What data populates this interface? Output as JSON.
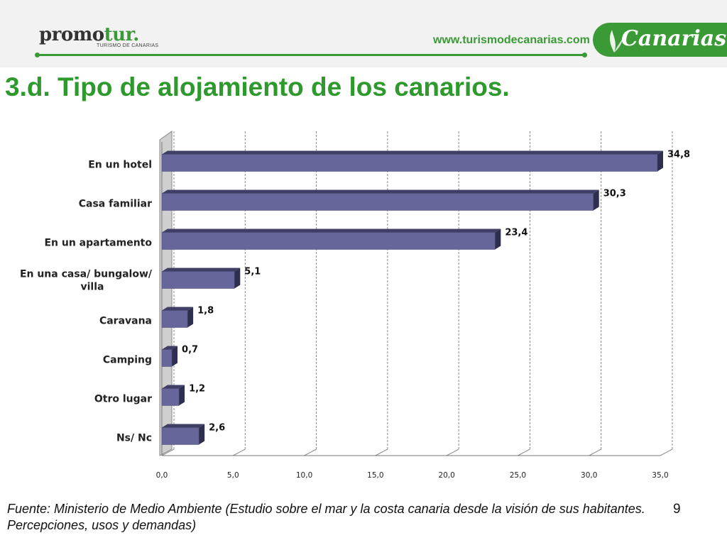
{
  "header": {
    "logo": "promotur.",
    "logo_subtitle": "TURISMO DE CANARIAS",
    "website": "www.turismodecanarias.com",
    "brand": "Canarias",
    "accent_color": "#3a9a35"
  },
  "title": "3.d. Tipo de alojamiento de los canarios.",
  "chart_data": {
    "type": "bar",
    "orientation": "horizontal",
    "categories": [
      "En un hotel",
      "Casa familiar",
      "En un apartamento",
      "En una casa/ bungalow/ villa",
      "Caravana",
      "Camping",
      "Otro lugar",
      "Ns/ Nc"
    ],
    "values": [
      34.8,
      30.3,
      23.4,
      5.1,
      1.8,
      0.7,
      1.2,
      2.6
    ],
    "data_labels": [
      "34,8",
      "30,3",
      "23,4",
      "5,1",
      "1,8",
      "0,7",
      "1,2",
      "2,6"
    ],
    "xlim": [
      0,
      35
    ],
    "x_ticks": [
      "0,0",
      "5,0",
      "10,0",
      "15,0",
      "20,0",
      "25,0",
      "30,0",
      "35,0"
    ],
    "grid": true,
    "bar_color": "#66669a",
    "title": "",
    "xlabel": "",
    "ylabel": ""
  },
  "footer": {
    "source": "Fuente: Ministerio de Medio Ambiente (Estudio sobre el mar y la costa canaria desde la visión de sus habitantes. Percepciones, usos y demandas)",
    "page_number": "9"
  }
}
